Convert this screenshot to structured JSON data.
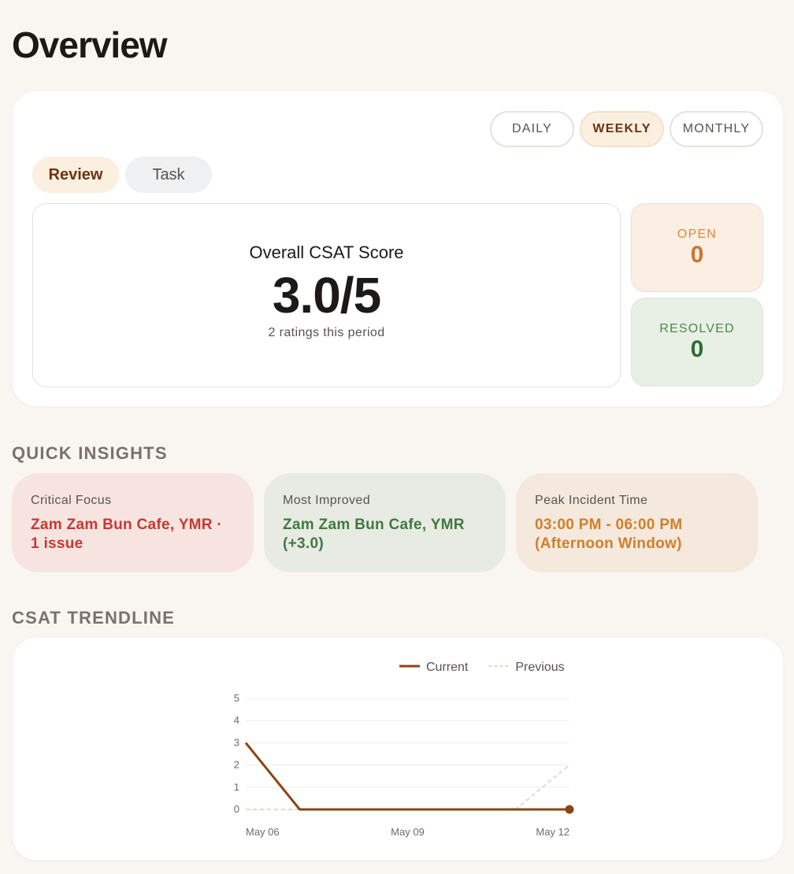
{
  "header": {
    "title": "Overview"
  },
  "period_tabs": [
    "DAILY",
    "WEEKLY",
    "MONTHLY"
  ],
  "mode_tabs": [
    "Review",
    "Task"
  ],
  "score_card": {
    "title": "Overall CSAT Score",
    "score": "3.0/5",
    "subtitle": "2 ratings this period"
  },
  "status": {
    "open": {
      "label": "OPEN",
      "value": "0"
    },
    "resolved": {
      "label": "RESOLVED",
      "value": "0"
    }
  },
  "insights": {
    "title": "QUICK INSIGHTS",
    "items": [
      {
        "label": "Critical Focus",
        "value": "Zam Zam Bun Cafe, YMR · 1 issue"
      },
      {
        "label": "Most Improved",
        "value": "Zam Zam Bun Cafe, YMR (+3.0)"
      },
      {
        "label": "Peak Incident Time",
        "value": "03:00 PM - 06:00 PM (Afternoon Window)"
      }
    ]
  },
  "trend": {
    "title": "CSAT TRENDLINE"
  },
  "chart_data": {
    "type": "line",
    "categories": [
      "May 06",
      null,
      null,
      "May 09",
      null,
      null,
      "May 12"
    ],
    "series": [
      {
        "name": "Current",
        "color": "#8b4513",
        "values": [
          3,
          0,
          0,
          0,
          0,
          0,
          0
        ]
      },
      {
        "name": "Previous",
        "color": "#d8dccd",
        "values": [
          0,
          0,
          0,
          0,
          0,
          0,
          2
        ]
      }
    ],
    "ylim": [
      0,
      5
    ],
    "yticks": [
      0,
      1,
      2,
      3,
      4,
      5
    ],
    "grid": true,
    "legend": "top"
  }
}
